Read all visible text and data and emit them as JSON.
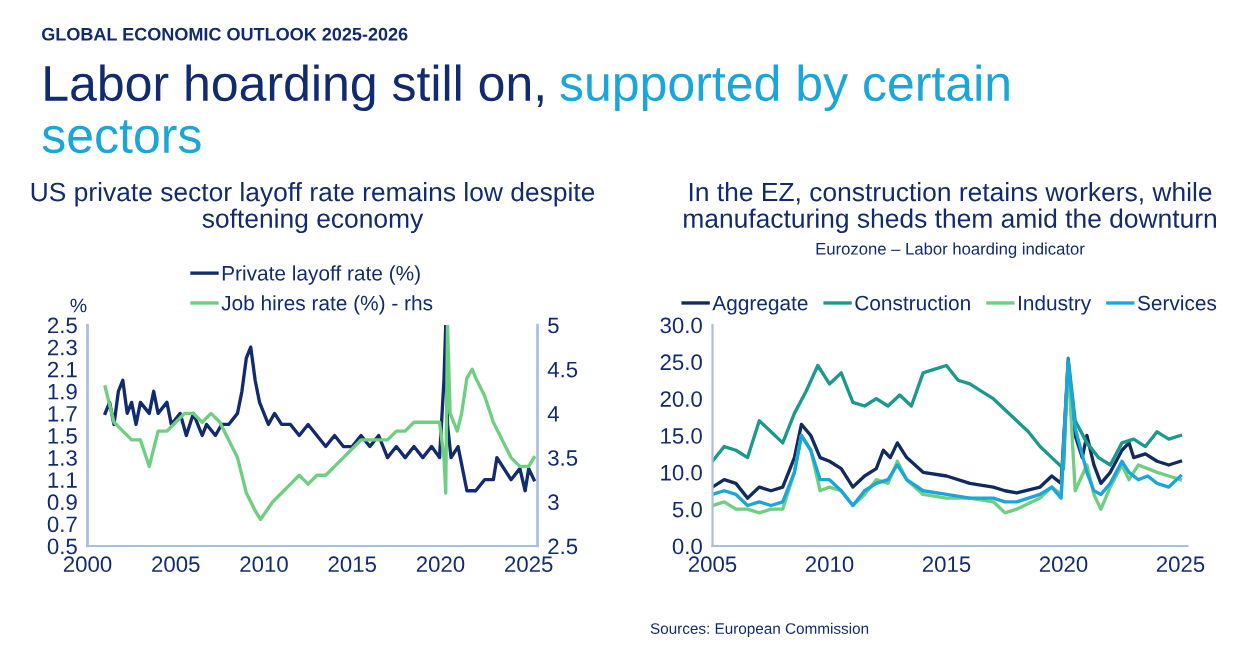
{
  "chart_data": [
    {
      "type": "line",
      "title": "US private sector layoff rate remains low despite softening economy",
      "ylabel": "%",
      "legend": "top",
      "annotations": [
        "GLOBAL ECONOMIC OUTLOOK 2025-2026",
        "Labor hoarding still on,",
        "supported by certain",
        "sectors"
      ],
      "xlim": [
        2000,
        2025.5
      ],
      "xticks": [
        2000,
        2005,
        2010,
        2015,
        2020,
        2025
      ],
      "ylim": [
        0.5,
        2.5
      ],
      "yticks": [
        0.5,
        0.7,
        0.9,
        1.1,
        1.3,
        1.5,
        1.7,
        1.9,
        2.1,
        2.3,
        2.5
      ],
      "y2lim": [
        2.5,
        5
      ],
      "y2ticks": [
        2.5,
        3,
        3.5,
        4,
        4.5,
        5
      ],
      "series": [
        {
          "name": "Private layoff rate (%)",
          "color": "#122b6e",
          "x": [
            2001.0,
            2001.25,
            2001.5,
            2001.75,
            2002.0,
            2002.25,
            2002.5,
            2002.75,
            2003.0,
            2003.5,
            2003.75,
            2004.0,
            2004.5,
            2004.75,
            2005.25,
            2005.6,
            2006.0,
            2006.5,
            2006.75,
            2007.25,
            2007.6,
            2008.0,
            2008.5,
            2008.75,
            2009.0,
            2009.25,
            2009.5,
            2009.75,
            2010.25,
            2010.6,
            2011.0,
            2011.5,
            2012.0,
            2012.5,
            2013.0,
            2013.5,
            2014.0,
            2014.5,
            2015.0,
            2015.5,
            2016.0,
            2016.5,
            2017.0,
            2017.5,
            2018.0,
            2018.5,
            2019.0,
            2019.5,
            2019.95,
            2020.2,
            2020.3,
            2020.4,
            2020.6,
            2021.0,
            2021.5,
            2022.0,
            2022.5,
            2023.0,
            2023.2,
            2023.6,
            2024.0,
            2024.5,
            2024.8,
            2025.0,
            2025.3
          ],
          "values": [
            1.7,
            1.8,
            1.6,
            1.9,
            2.0,
            1.7,
            1.8,
            1.6,
            1.8,
            1.7,
            1.9,
            1.7,
            1.8,
            1.6,
            1.7,
            1.5,
            1.7,
            1.5,
            1.6,
            1.5,
            1.6,
            1.6,
            1.7,
            1.9,
            2.2,
            2.3,
            2.0,
            1.8,
            1.6,
            1.7,
            1.6,
            1.6,
            1.5,
            1.6,
            1.5,
            1.4,
            1.5,
            1.4,
            1.4,
            1.5,
            1.4,
            1.5,
            1.3,
            1.4,
            1.3,
            1.4,
            1.3,
            1.4,
            1.3,
            2.0,
            2.5,
            1.6,
            1.3,
            1.4,
            1.0,
            1.0,
            1.1,
            1.1,
            1.3,
            1.2,
            1.1,
            1.2,
            1.0,
            1.2,
            1.1
          ]
        },
        {
          "name": "Job hires rate (%) - rhs",
          "color": "#6fcf80",
          "axis": "y2",
          "x": [
            2001.0,
            2001.5,
            2002.0,
            2002.5,
            2003.0,
            2003.5,
            2004.0,
            2004.5,
            2005.0,
            2005.5,
            2006.0,
            2006.5,
            2007.0,
            2007.5,
            2008.0,
            2008.5,
            2009.0,
            2009.5,
            2009.8,
            2010.5,
            2011.0,
            2011.5,
            2012.0,
            2012.5,
            2013.0,
            2013.5,
            2014.0,
            2014.5,
            2015.0,
            2015.5,
            2016.0,
            2016.5,
            2017.0,
            2017.5,
            2018.0,
            2018.5,
            2019.0,
            2019.5,
            2019.95,
            2020.2,
            2020.3,
            2020.4,
            2020.55,
            2020.95,
            2021.2,
            2021.5,
            2021.8,
            2022.0,
            2022.5,
            2023.0,
            2023.5,
            2024.0,
            2024.5,
            2025.0,
            2025.3
          ],
          "values": [
            4.3,
            3.9,
            3.8,
            3.7,
            3.7,
            3.4,
            3.8,
            3.8,
            3.9,
            4.0,
            4.0,
            3.9,
            4.0,
            3.9,
            3.7,
            3.5,
            3.1,
            2.9,
            2.8,
            3.0,
            3.1,
            3.2,
            3.3,
            3.2,
            3.3,
            3.3,
            3.4,
            3.5,
            3.6,
            3.7,
            3.7,
            3.7,
            3.7,
            3.8,
            3.8,
            3.9,
            3.9,
            3.9,
            3.9,
            3.5,
            3.1,
            5.0,
            4.0,
            3.8,
            4.0,
            4.4,
            4.5,
            4.4,
            4.2,
            3.9,
            3.7,
            3.5,
            3.4,
            3.4,
            3.5
          ]
        }
      ]
    },
    {
      "type": "line",
      "title": "In the EZ, construction retains workers, while manufacturing sheds them amid the downturn",
      "subtitle": "Eurozone – Labor hoarding indicator",
      "legend": "top",
      "annotations": [
        "Sources: European Commission"
      ],
      "xlim": [
        2005,
        2025.3
      ],
      "xticks": [
        2005,
        2010,
        2015,
        2020,
        2025
      ],
      "ylim": [
        0,
        30
      ],
      "yticks": [
        {
          "value": 0,
          "label": "0.0"
        },
        {
          "value": 5,
          "label": "5.0"
        },
        {
          "value": 10,
          "label": "10.0"
        },
        {
          "value": 15,
          "label": "15.0"
        },
        {
          "value": 20,
          "label": "20.0"
        },
        {
          "value": 25,
          "label": "25.0"
        },
        {
          "value": 30,
          "label": "30.0"
        }
      ],
      "series": [
        {
          "name": "Aggregate",
          "color": "#122b5e",
          "x": [
            2005,
            2005.5,
            2006,
            2006.5,
            2007,
            2007.5,
            2008,
            2008.5,
            2008.8,
            2009.2,
            2009.6,
            2010,
            2010.5,
            2011,
            2011.5,
            2012,
            2012.3,
            2012.6,
            2012.9,
            2013.3,
            2014,
            2015,
            2016,
            2017,
            2017.5,
            2018,
            2019,
            2019.5,
            2019.9,
            2020.2,
            2020.5,
            2020.8,
            2021,
            2021.3,
            2021.6,
            2022,
            2022.5,
            2022.8,
            2023,
            2023.5,
            2024,
            2024.5,
            2025
          ],
          "values": [
            8.0,
            9.0,
            8.5,
            6.5,
            8.0,
            7.5,
            8.0,
            12.0,
            16.5,
            15.0,
            12.0,
            11.5,
            10.5,
            8.0,
            9.5,
            10.5,
            13.0,
            12.0,
            14.0,
            12.0,
            10.0,
            9.5,
            8.5,
            8.0,
            7.5,
            7.2,
            8.0,
            9.5,
            8.5,
            25.0,
            15.0,
            12.0,
            15.0,
            11.0,
            8.5,
            10.0,
            13.0,
            14.0,
            12.0,
            12.5,
            11.5,
            11.0,
            11.5
          ]
        },
        {
          "name": "Construction",
          "color": "#1a9a8a",
          "x": [
            2005,
            2005.5,
            2006,
            2006.5,
            2007,
            2007.5,
            2008,
            2008.5,
            2009,
            2009.5,
            2010,
            2010.5,
            2011,
            2011.5,
            2012,
            2012.5,
            2013,
            2013.5,
            2014,
            2014.5,
            2015,
            2015.5,
            2016,
            2016.5,
            2017,
            2017.5,
            2018,
            2018.5,
            2019,
            2019.5,
            2020,
            2020.2,
            2020.5,
            2021,
            2021.5,
            2022,
            2022.5,
            2023,
            2023.5,
            2024,
            2024.5,
            2025
          ],
          "values": [
            11.5,
            13.5,
            13.0,
            12.0,
            17.0,
            15.5,
            14.0,
            18.0,
            21.0,
            24.5,
            22.0,
            23.5,
            19.5,
            19.0,
            20.0,
            19.0,
            20.5,
            19.0,
            23.5,
            24.0,
            24.5,
            22.5,
            22.0,
            21.0,
            20.0,
            18.5,
            17.0,
            15.5,
            13.5,
            12.0,
            10.5,
            25.5,
            17.0,
            14.0,
            12.0,
            11.0,
            14.0,
            14.5,
            13.5,
            15.5,
            14.5,
            15.0
          ]
        },
        {
          "name": "Industry",
          "color": "#6fcf80",
          "x": [
            2005,
            2005.5,
            2006,
            2006.5,
            2007,
            2007.5,
            2008,
            2008.5,
            2008.8,
            2009.2,
            2009.6,
            2010,
            2010.5,
            2011,
            2011.5,
            2012,
            2012.5,
            2012.9,
            2013.3,
            2014,
            2015,
            2016,
            2017,
            2017.5,
            2018,
            2019,
            2019.5,
            2019.9,
            2020.2,
            2020.5,
            2021,
            2021.3,
            2021.6,
            2022,
            2022.5,
            2022.8,
            2023.2,
            2023.6,
            2024,
            2024.5,
            2025
          ],
          "values": [
            5.5,
            6.0,
            5.0,
            5.0,
            4.5,
            5.0,
            5.0,
            10.0,
            15.0,
            13.0,
            7.5,
            8.0,
            7.5,
            5.5,
            7.0,
            9.0,
            8.5,
            11.5,
            9.0,
            7.0,
            6.5,
            6.5,
            6.0,
            4.5,
            5.0,
            6.5,
            8.0,
            7.0,
            24.5,
            7.5,
            11.0,
            7.0,
            5.0,
            8.0,
            11.0,
            9.0,
            11.0,
            10.5,
            10.0,
            9.5,
            9.0
          ]
        },
        {
          "name": "Services",
          "color": "#1aa6d8",
          "x": [
            2005,
            2005.5,
            2006,
            2006.5,
            2007,
            2007.5,
            2008,
            2008.5,
            2008.8,
            2009.2,
            2009.6,
            2010,
            2010.5,
            2011,
            2011.5,
            2012,
            2012.5,
            2012.9,
            2013.3,
            2014,
            2015,
            2016,
            2017,
            2017.5,
            2018,
            2019,
            2019.5,
            2019.9,
            2020.2,
            2020.5,
            2021,
            2021.3,
            2021.6,
            2022,
            2022.5,
            2022.8,
            2023.2,
            2023.6,
            2024,
            2024.5,
            2025
          ],
          "values": [
            7.0,
            7.5,
            7.0,
            5.5,
            6.0,
            5.5,
            6.0,
            10.0,
            15.0,
            13.0,
            9.0,
            9.0,
            7.5,
            5.5,
            7.5,
            8.5,
            9.0,
            11.0,
            9.0,
            7.5,
            7.0,
            6.5,
            6.5,
            6.0,
            6.0,
            7.0,
            8.0,
            6.5,
            25.0,
            16.0,
            10.0,
            7.5,
            7.0,
            8.5,
            11.5,
            10.0,
            9.0,
            9.5,
            8.5,
            8.0,
            9.5
          ]
        }
      ]
    }
  ]
}
